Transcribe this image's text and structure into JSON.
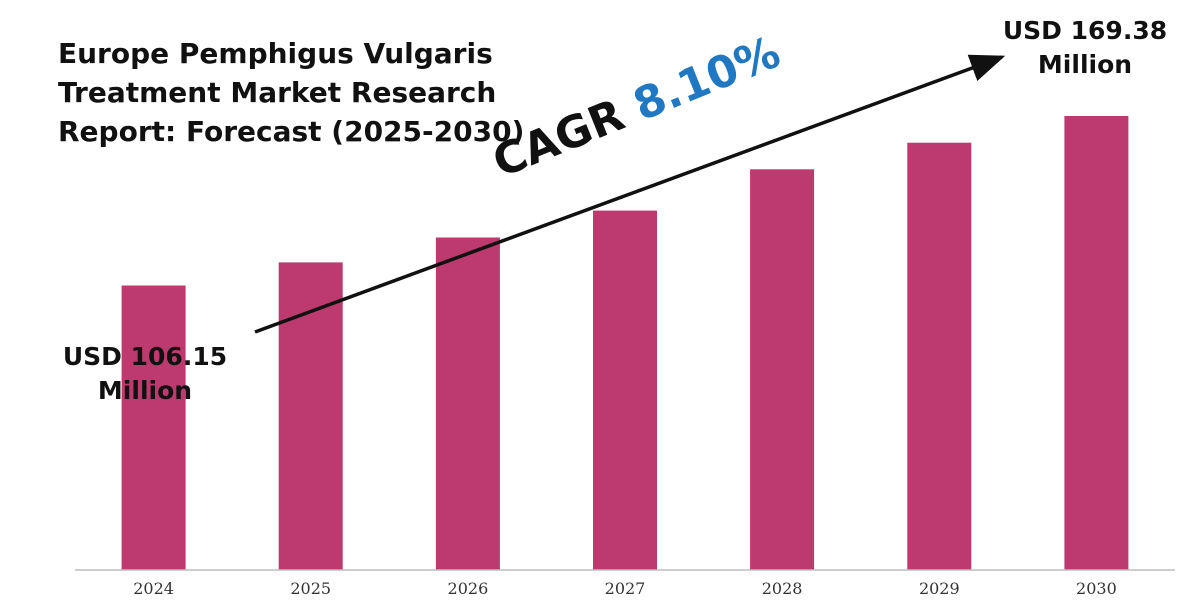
{
  "title_lines": [
    "Europe Pemphigus Vulgaris",
    "Treatment Market Research",
    "Report: Forecast (2025-2030)"
  ],
  "start_callout": {
    "line1": "USD 106.15",
    "line2": "Million"
  },
  "end_callout": {
    "line1": "USD 169.38",
    "line2": "Million"
  },
  "cagr": {
    "label": "CAGR",
    "value": "8.10%"
  },
  "colors": {
    "bar": "#bc3a6e",
    "cagr_value": "#1f78c1",
    "text": "#111111",
    "arrow": "#111111"
  },
  "chart_data": {
    "type": "bar",
    "title": "Europe Pemphigus Vulgaris Treatment Market Research Report: Forecast (2025-2030)",
    "categories": [
      "2024",
      "2025",
      "2026",
      "2027",
      "2028",
      "2029",
      "2030"
    ],
    "values": [
      106.15,
      114.75,
      124.04,
      134.09,
      149.5,
      159.4,
      169.38
    ],
    "unit": "USD Million",
    "xlabel": "",
    "ylabel": "",
    "ylim": [
      0,
      194
    ],
    "grid": false,
    "legend": "none",
    "annotations": [
      {
        "category": "2024",
        "text": "USD 106.15 Million"
      },
      {
        "category": "2030",
        "text": "USD 169.38 Million"
      },
      {
        "text": "CAGR 8.10%"
      }
    ]
  }
}
